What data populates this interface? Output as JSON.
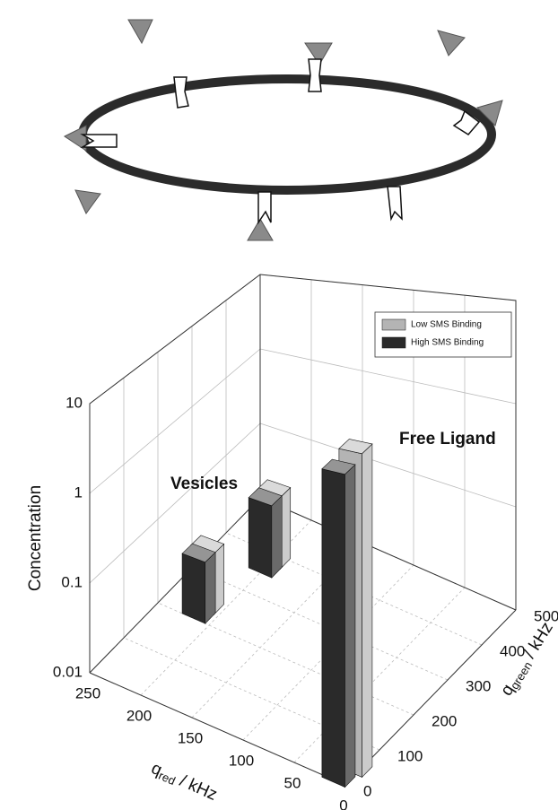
{
  "chart_data": {
    "type": "bar3d",
    "zlabel": "Concentration",
    "xlabel": {
      "symbol": "q",
      "subscript": "red",
      "unit": " / kHz"
    },
    "ylabel": {
      "symbol": "q",
      "subscript": "green",
      "unit": " / kHz"
    },
    "xlim": [
      0,
      250
    ],
    "xticks": [
      0,
      50,
      100,
      150,
      200,
      250
    ],
    "ylim": [
      0,
      500
    ],
    "yticks": [
      0,
      100,
      200,
      300,
      400,
      500
    ],
    "zlim": [
      0.01,
      10
    ],
    "zticks": [
      0.01,
      0.1,
      1,
      10
    ],
    "zscale": "log",
    "grid": true,
    "legend": "upper right",
    "series": [
      {
        "name": "Low SMS Binding",
        "color": "#b4b4b4",
        "x": [
          215,
          200,
          5
        ],
        "y": [
          240,
          390,
          45
        ],
        "values": [
          0.05,
          0.07,
          10
        ]
      },
      {
        "name": "High SMS Binding",
        "color": "#2a2a2a",
        "x": [
          215,
          200,
          10
        ],
        "y": [
          215,
          365,
          10
        ],
        "values": [
          0.05,
          0.07,
          8
        ]
      }
    ],
    "annotations": [
      "Vesicles",
      "Free Ligand"
    ]
  }
}
